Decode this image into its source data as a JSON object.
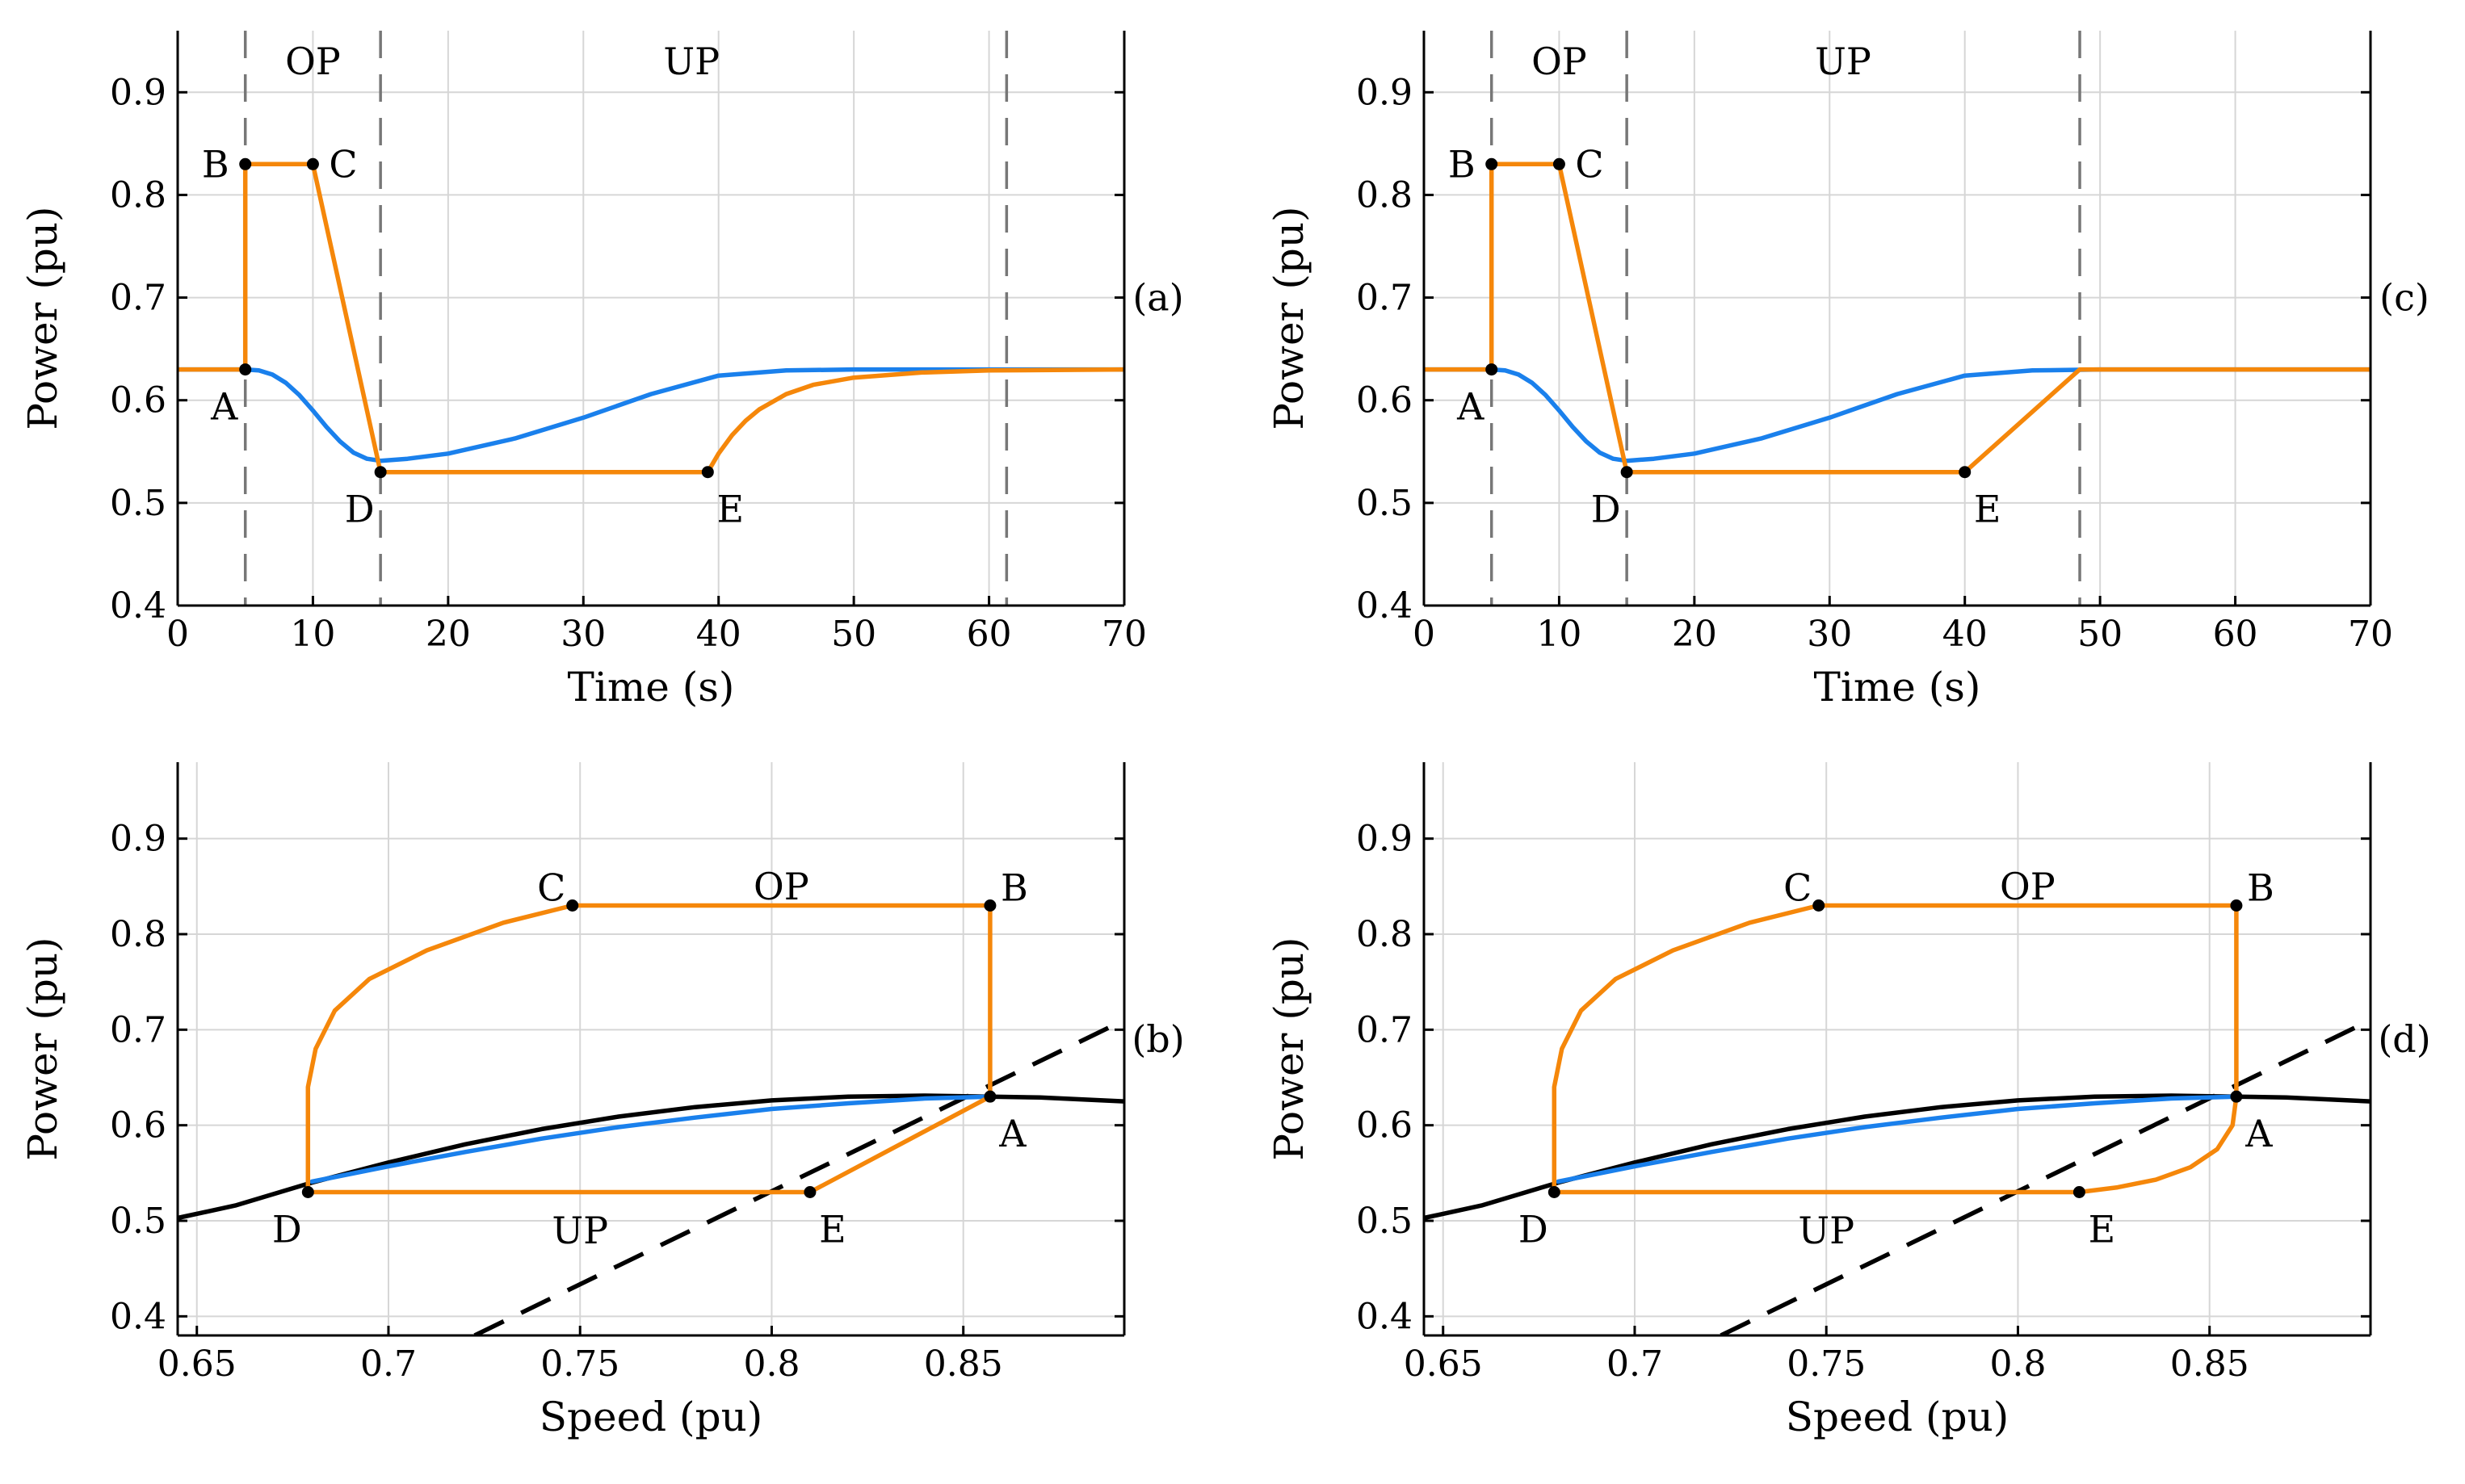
{
  "colors": {
    "blue": "#1a80ec",
    "orange": "#f5870a",
    "black": "#000000",
    "grid": "#d6d6d6",
    "dashed_vline": "#777777"
  },
  "chart_data": [
    {
      "panel": "(a)",
      "type": "line",
      "xlabel": "Time (s)",
      "ylabel": "Power (pu)",
      "xlim": [
        0,
        70
      ],
      "ylim": [
        0.4,
        0.96
      ],
      "xticks": [
        0,
        10,
        20,
        30,
        40,
        50,
        60,
        70
      ],
      "yticks": [
        0.4,
        0.5,
        0.6,
        0.7,
        0.8,
        0.9
      ],
      "grid": true,
      "vlines": [
        5,
        15,
        61.3
      ],
      "regions": [
        {
          "label": "OP",
          "x": 10,
          "y": 0.93
        },
        {
          "label": "UP",
          "x": 38,
          "y": 0.93
        }
      ],
      "series": [
        {
          "color": "blue",
          "points": [
            [
              0,
              0.63
            ],
            [
              5,
              0.63
            ],
            [
              6,
              0.629
            ],
            [
              7,
              0.625
            ],
            [
              8,
              0.617
            ],
            [
              9,
              0.605
            ],
            [
              10,
              0.59
            ],
            [
              11,
              0.574
            ],
            [
              12,
              0.56
            ],
            [
              13,
              0.549
            ],
            [
              14,
              0.543
            ],
            [
              15,
              0.541
            ],
            [
              17,
              0.543
            ],
            [
              20,
              0.548
            ],
            [
              25,
              0.563
            ],
            [
              30,
              0.583
            ],
            [
              35,
              0.606
            ],
            [
              40,
              0.624
            ],
            [
              45,
              0.629
            ],
            [
              50,
              0.63
            ],
            [
              70,
              0.63
            ]
          ]
        },
        {
          "color": "orange",
          "points": [
            [
              0,
              0.63
            ],
            [
              5,
              0.63
            ],
            [
              5,
              0.83
            ],
            [
              10,
              0.83
            ],
            [
              15,
              0.53
            ],
            [
              39.2,
              0.53
            ],
            [
              40,
              0.548
            ],
            [
              41,
              0.566
            ],
            [
              42,
              0.58
            ],
            [
              43,
              0.591
            ],
            [
              45,
              0.606
            ],
            [
              47,
              0.615
            ],
            [
              50,
              0.622
            ],
            [
              55,
              0.627
            ],
            [
              60,
              0.629
            ],
            [
              70,
              0.63
            ]
          ]
        }
      ],
      "points": [
        {
          "label": "A",
          "x": 5,
          "y": 0.63,
          "pos": "below-left"
        },
        {
          "label": "B",
          "x": 5,
          "y": 0.83,
          "pos": "left"
        },
        {
          "label": "C",
          "x": 10,
          "y": 0.83,
          "pos": "right"
        },
        {
          "label": "D",
          "x": 15,
          "y": 0.53,
          "pos": "below-left"
        },
        {
          "label": "E",
          "x": 39.2,
          "y": 0.53,
          "pos": "below-right"
        }
      ]
    },
    {
      "panel": "(c)",
      "type": "line",
      "xlabel": "Time (s)",
      "ylabel": "Power (pu)",
      "xlim": [
        0,
        70
      ],
      "ylim": [
        0.4,
        0.96
      ],
      "xticks": [
        0,
        10,
        20,
        30,
        40,
        50,
        60,
        70
      ],
      "yticks": [
        0.4,
        0.5,
        0.6,
        0.7,
        0.8,
        0.9
      ],
      "grid": true,
      "vlines": [
        5,
        15,
        48.5
      ],
      "regions": [
        {
          "label": "OP",
          "x": 10,
          "y": 0.93
        },
        {
          "label": "UP",
          "x": 31,
          "y": 0.93
        }
      ],
      "series": [
        {
          "color": "blue",
          "points": [
            [
              0,
              0.63
            ],
            [
              5,
              0.63
            ],
            [
              6,
              0.629
            ],
            [
              7,
              0.625
            ],
            [
              8,
              0.617
            ],
            [
              9,
              0.605
            ],
            [
              10,
              0.59
            ],
            [
              11,
              0.574
            ],
            [
              12,
              0.56
            ],
            [
              13,
              0.549
            ],
            [
              14,
              0.543
            ],
            [
              15,
              0.541
            ],
            [
              17,
              0.543
            ],
            [
              20,
              0.548
            ],
            [
              25,
              0.563
            ],
            [
              30,
              0.583
            ],
            [
              35,
              0.606
            ],
            [
              40,
              0.624
            ],
            [
              45,
              0.629
            ],
            [
              50,
              0.63
            ],
            [
              70,
              0.63
            ]
          ]
        },
        {
          "color": "orange",
          "points": [
            [
              0,
              0.63
            ],
            [
              5,
              0.63
            ],
            [
              5,
              0.83
            ],
            [
              10,
              0.83
            ],
            [
              15,
              0.53
            ],
            [
              40,
              0.53
            ],
            [
              48.5,
              0.63
            ],
            [
              70,
              0.63
            ]
          ]
        }
      ],
      "points": [
        {
          "label": "A",
          "x": 5,
          "y": 0.63,
          "pos": "below-left"
        },
        {
          "label": "B",
          "x": 5,
          "y": 0.83,
          "pos": "left"
        },
        {
          "label": "C",
          "x": 10,
          "y": 0.83,
          "pos": "right"
        },
        {
          "label": "D",
          "x": 15,
          "y": 0.53,
          "pos": "below-left"
        },
        {
          "label": "E",
          "x": 40,
          "y": 0.53,
          "pos": "below-right"
        }
      ]
    },
    {
      "panel": "(b)",
      "type": "line",
      "xlabel": "Speed (pu)",
      "ylabel": "Power (pu)",
      "xlim": [
        0.645,
        0.892
      ],
      "ylim": [
        0.38,
        0.98
      ],
      "xticks": [
        0.65,
        0.7,
        0.75,
        0.8,
        0.85
      ],
      "yticks": [
        0.4,
        0.5,
        0.6,
        0.7,
        0.8,
        0.9
      ],
      "grid": true,
      "vlines": [],
      "regions": [
        {
          "label": "OP",
          "x": 0.8025,
          "y": 0.85
        },
        {
          "label": "UP",
          "x": 0.75,
          "y": 0.49
        }
      ],
      "series": [
        {
          "color": "black",
          "dash": false,
          "points": [
            [
              0.645,
              0.503
            ],
            [
              0.66,
              0.516
            ],
            [
              0.68,
              0.54
            ],
            [
              0.7,
              0.561
            ],
            [
              0.72,
              0.58
            ],
            [
              0.74,
              0.596
            ],
            [
              0.76,
              0.609
            ],
            [
              0.78,
              0.619
            ],
            [
              0.8,
              0.626
            ],
            [
              0.82,
              0.63
            ],
            [
              0.84,
              0.631
            ],
            [
              0.857,
              0.63
            ],
            [
              0.87,
              0.629
            ],
            [
              0.892,
              0.625
            ]
          ]
        },
        {
          "color": "black",
          "dash": true,
          "points": [
            [
              0.7225,
              0.38
            ],
            [
              0.892,
              0.71
            ]
          ]
        },
        {
          "color": "blue",
          "points": [
            [
              0.68,
              0.541
            ],
            [
              0.7,
              0.557
            ],
            [
              0.72,
              0.572
            ],
            [
              0.74,
              0.586
            ],
            [
              0.76,
              0.598
            ],
            [
              0.78,
              0.608
            ],
            [
              0.8,
              0.617
            ],
            [
              0.82,
              0.623
            ],
            [
              0.84,
              0.628
            ],
            [
              0.857,
              0.63
            ]
          ]
        },
        {
          "color": "orange",
          "points": [
            [
              0.857,
              0.63
            ],
            [
              0.857,
              0.83
            ],
            [
              0.748,
              0.83
            ],
            [
              0.73,
              0.812
            ],
            [
              0.71,
              0.783
            ],
            [
              0.695,
              0.753
            ],
            [
              0.686,
              0.72
            ],
            [
              0.681,
              0.68
            ],
            [
              0.679,
              0.64
            ],
            [
              0.679,
              0.6
            ],
            [
              0.679,
              0.56
            ],
            [
              0.679,
              0.53
            ],
            [
              0.81,
              0.53
            ],
            [
              0.857,
              0.63
            ]
          ]
        }
      ],
      "points": [
        {
          "label": "A",
          "x": 0.857,
          "y": 0.63,
          "pos": "below-right"
        },
        {
          "label": "B",
          "x": 0.857,
          "y": 0.83,
          "pos": "above-right"
        },
        {
          "label": "C",
          "x": 0.748,
          "y": 0.83,
          "pos": "above-left"
        },
        {
          "label": "D",
          "x": 0.679,
          "y": 0.53,
          "pos": "below-left"
        },
        {
          "label": "E",
          "x": 0.81,
          "y": 0.53,
          "pos": "below-right"
        }
      ]
    },
    {
      "panel": "(d)",
      "type": "line",
      "xlabel": "Speed (pu)",
      "ylabel": "Power (pu)",
      "xlim": [
        0.645,
        0.892
      ],
      "ylim": [
        0.38,
        0.98
      ],
      "xticks": [
        0.65,
        0.7,
        0.75,
        0.8,
        0.85
      ],
      "yticks": [
        0.4,
        0.5,
        0.6,
        0.7,
        0.8,
        0.9
      ],
      "grid": true,
      "vlines": [],
      "regions": [
        {
          "label": "OP",
          "x": 0.8025,
          "y": 0.85
        },
        {
          "label": "UP",
          "x": 0.75,
          "y": 0.49
        }
      ],
      "series": [
        {
          "color": "black",
          "dash": false,
          "points": [
            [
              0.645,
              0.503
            ],
            [
              0.66,
              0.516
            ],
            [
              0.68,
              0.54
            ],
            [
              0.7,
              0.561
            ],
            [
              0.72,
              0.58
            ],
            [
              0.74,
              0.596
            ],
            [
              0.76,
              0.609
            ],
            [
              0.78,
              0.619
            ],
            [
              0.8,
              0.626
            ],
            [
              0.82,
              0.63
            ],
            [
              0.84,
              0.631
            ],
            [
              0.857,
              0.63
            ],
            [
              0.87,
              0.629
            ],
            [
              0.892,
              0.625
            ]
          ]
        },
        {
          "color": "black",
          "dash": true,
          "points": [
            [
              0.7225,
              0.38
            ],
            [
              0.892,
              0.71
            ]
          ]
        },
        {
          "color": "blue",
          "points": [
            [
              0.68,
              0.541
            ],
            [
              0.7,
              0.557
            ],
            [
              0.72,
              0.572
            ],
            [
              0.74,
              0.586
            ],
            [
              0.76,
              0.598
            ],
            [
              0.78,
              0.608
            ],
            [
              0.8,
              0.617
            ],
            [
              0.82,
              0.623
            ],
            [
              0.84,
              0.628
            ],
            [
              0.857,
              0.63
            ]
          ]
        },
        {
          "color": "orange",
          "points": [
            [
              0.857,
              0.63
            ],
            [
              0.857,
              0.83
            ],
            [
              0.748,
              0.83
            ],
            [
              0.73,
              0.812
            ],
            [
              0.71,
              0.783
            ],
            [
              0.695,
              0.753
            ],
            [
              0.686,
              0.72
            ],
            [
              0.681,
              0.68
            ],
            [
              0.679,
              0.64
            ],
            [
              0.679,
              0.6
            ],
            [
              0.679,
              0.56
            ],
            [
              0.679,
              0.53
            ],
            [
              0.816,
              0.53
            ],
            [
              0.826,
              0.535
            ],
            [
              0.836,
              0.543
            ],
            [
              0.845,
              0.556
            ],
            [
              0.852,
              0.575
            ],
            [
              0.856,
              0.6
            ],
            [
              0.857,
              0.63
            ]
          ]
        }
      ],
      "points": [
        {
          "label": "A",
          "x": 0.857,
          "y": 0.63,
          "pos": "below-right"
        },
        {
          "label": "B",
          "x": 0.857,
          "y": 0.83,
          "pos": "above-right"
        },
        {
          "label": "C",
          "x": 0.748,
          "y": 0.83,
          "pos": "above-left"
        },
        {
          "label": "D",
          "x": 0.679,
          "y": 0.53,
          "pos": "below-left"
        },
        {
          "label": "E",
          "x": 0.816,
          "y": 0.53,
          "pos": "below-right"
        }
      ]
    }
  ]
}
